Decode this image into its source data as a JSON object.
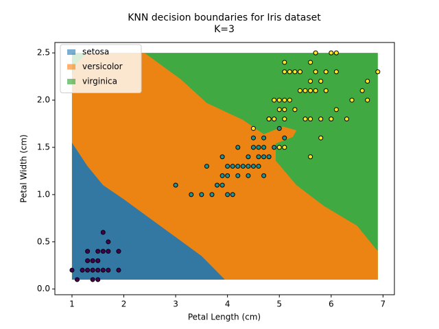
{
  "chart_data": {
    "type": "scatter",
    "title": "KNN decision boundaries for Iris dataset",
    "subtitle": "K=3",
    "x_label": "Petal Length (cm)",
    "y_label": "Petal Width (cm)",
    "xlim": [
      0.67,
      7.22
    ],
    "ylim": [
      -0.06,
      2.61
    ],
    "xticks": [
      1,
      2,
      3,
      4,
      5,
      6,
      7
    ],
    "yticks": [
      {
        "value": 0,
        "label": "0.0"
      },
      {
        "value": 0.5,
        "label": "0.5"
      },
      {
        "value": 1,
        "label": "1.0"
      },
      {
        "value": 1.5,
        "label": "1.5"
      },
      {
        "value": 2,
        "label": "2.0"
      },
      {
        "value": 2.5,
        "label": "2.5"
      }
    ],
    "legend": "upper left",
    "regions": [
      {
        "name": "virginica",
        "color": "#2ca02c",
        "x": [
          1.0,
          6.9,
          6.9,
          1.0
        ],
        "y": [
          0.1,
          0.1,
          2.5,
          2.5
        ]
      },
      {
        "name": "versicolor",
        "color": "#ff7f0e",
        "x": [
          1.0,
          1.0,
          1.1,
          1.3,
          2.4,
          3.1,
          3.6,
          4.3,
          4.7,
          5.07,
          5.33,
          5.26,
          4.93,
          4.93,
          5.33,
          5.86,
          6.5,
          6.9,
          6.9
        ],
        "y": [
          0.1,
          2.27,
          2.4,
          2.5,
          2.5,
          2.22,
          1.97,
          1.79,
          1.64,
          1.72,
          1.68,
          1.61,
          1.54,
          1.36,
          1.1,
          0.88,
          0.67,
          0.4,
          0.1
        ]
      },
      {
        "name": "setosa",
        "color": "#1f77b4",
        "x": [
          1.0,
          1.0,
          1.3,
          1.6,
          2.0,
          2.5,
          3.0,
          3.5,
          3.95
        ],
        "y": [
          0.1,
          1.55,
          1.3,
          1.1,
          0.95,
          0.75,
          0.55,
          0.35,
          0.1
        ]
      }
    ],
    "series": [
      {
        "color": "#440154",
        "x": [
          1.0,
          1.1,
          1.2,
          1.3,
          1.3,
          1.3,
          1.4,
          1.4,
          1.4,
          1.5,
          1.5,
          1.5,
          1.5,
          1.6,
          1.6,
          1.6,
          1.7,
          1.7,
          1.7,
          1.9,
          1.9
        ],
        "values": [
          0.2,
          0.1,
          0.2,
          0.2,
          0.3,
          0.4,
          0.1,
          0.2,
          0.3,
          0.1,
          0.2,
          0.3,
          0.4,
          0.2,
          0.4,
          0.6,
          0.2,
          0.4,
          0.5,
          0.2,
          0.4
        ]
      },
      {
        "color": "#21918c",
        "x": [
          3.0,
          3.3,
          3.5,
          3.6,
          3.7,
          3.8,
          3.9,
          3.9,
          3.9,
          4.0,
          4.0,
          4.0,
          4.1,
          4.1,
          4.2,
          4.2,
          4.2,
          4.3,
          4.4,
          4.4,
          4.4,
          4.5,
          4.5,
          4.5,
          4.6,
          4.6,
          4.6,
          4.7,
          4.7,
          4.7,
          4.7,
          4.8,
          4.8,
          4.9,
          5.0,
          5.1
        ],
        "values": [
          1.1,
          1.0,
          1.0,
          1.3,
          1.0,
          1.1,
          1.1,
          1.2,
          1.4,
          1.0,
          1.2,
          1.3,
          1.0,
          1.3,
          1.2,
          1.3,
          1.5,
          1.3,
          1.2,
          1.3,
          1.4,
          1.3,
          1.5,
          1.6,
          1.3,
          1.4,
          1.5,
          1.2,
          1.4,
          1.5,
          1.6,
          1.4,
          1.8,
          1.5,
          1.7,
          1.6
        ]
      },
      {
        "color": "#fde725",
        "x": [
          4.5,
          4.8,
          4.9,
          4.9,
          5.0,
          5.0,
          5.0,
          5.1,
          5.1,
          5.1,
          5.1,
          5.1,
          5.1,
          5.2,
          5.2,
          5.3,
          5.3,
          5.4,
          5.4,
          5.5,
          5.5,
          5.6,
          5.6,
          5.6,
          5.6,
          5.6,
          5.7,
          5.7,
          5.7,
          5.8,
          5.8,
          5.8,
          5.9,
          5.9,
          6.0,
          6.0,
          6.1,
          6.1,
          6.1,
          6.3,
          6.4,
          6.6,
          6.7,
          6.7,
          6.9
        ],
        "values": [
          1.7,
          1.8,
          1.8,
          2.0,
          1.5,
          1.9,
          2.0,
          1.5,
          1.8,
          1.9,
          2.0,
          2.3,
          2.4,
          2.0,
          2.3,
          1.9,
          2.3,
          2.1,
          2.3,
          1.8,
          2.1,
          1.4,
          1.8,
          2.1,
          2.2,
          2.4,
          2.1,
          2.3,
          2.5,
          1.6,
          1.8,
          2.2,
          2.1,
          2.3,
          1.8,
          2.5,
          1.9,
          2.3,
          2.5,
          1.8,
          2.0,
          2.1,
          2.0,
          2.2,
          2.3
        ]
      }
    ]
  }
}
